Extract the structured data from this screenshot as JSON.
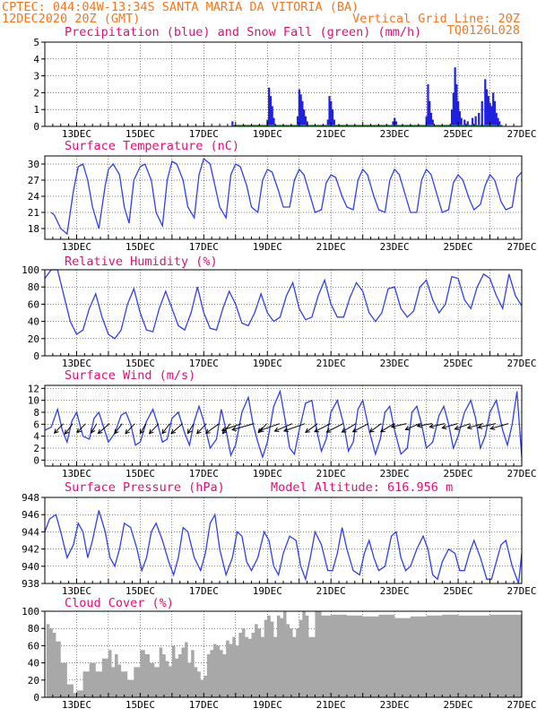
{
  "header": {
    "line1_left": "CPTEC:  044:04W-13:34S  SANTA MARIA DA VITORIA (BA)",
    "line2_left": "12DEC2020 20Z (GMT)",
    "line2_right": "Vertical Grid Line: 20Z",
    "line3_right": "TQ0126L028"
  },
  "colors": {
    "header": "#f07820",
    "title": "#e0107a",
    "precip": "#2020e0",
    "snow": "#20a020",
    "line": "#3040e8",
    "wind_arrow": "#000000",
    "cloud": "#a8a8a8",
    "grid": "#000000"
  },
  "x_tick_labels": [
    "13DEC",
    "15DEC",
    "17DEC",
    "19DEC",
    "21DEC",
    "23DEC",
    "25DEC",
    "27DEC"
  ],
  "chart_data": [
    {
      "type": "bar",
      "title": "Precipitation (blue) and Snow Fall (green) (mm/h)",
      "ylim": [
        0,
        5
      ],
      "yticks": [
        0,
        1,
        2,
        3,
        4,
        5
      ],
      "grid": true,
      "series": [
        {
          "name": "Precipitation",
          "x": [
            17.9,
            19.0,
            19.05,
            19.1,
            19.15,
            19.2,
            19.95,
            20.0,
            20.05,
            20.1,
            20.15,
            20.2,
            20.25,
            20.9,
            20.95,
            21.0,
            21.05,
            21.1,
            22.95,
            23.0,
            23.05,
            24.0,
            24.05,
            24.1,
            24.15,
            24.2,
            24.8,
            24.85,
            24.9,
            24.95,
            25.0,
            25.05,
            25.1,
            25.2,
            25.3,
            25.45,
            25.55,
            25.65,
            25.75,
            25.85,
            25.9,
            25.95,
            26.0,
            26.05,
            26.1,
            26.15,
            26.2,
            26.25,
            26.3
          ],
          "values": [
            0.3,
            0.4,
            2.3,
            1.8,
            1.2,
            0.5,
            0.6,
            2.2,
            1.9,
            1.5,
            1.0,
            0.6,
            0.3,
            0.4,
            1.8,
            1.5,
            1.0,
            0.4,
            0.3,
            0.5,
            0.3,
            0.6,
            2.5,
            1.5,
            0.8,
            0.4,
            1.0,
            2.0,
            3.5,
            2.5,
            1.5,
            0.9,
            0.5,
            0.4,
            0.3,
            0.5,
            0.6,
            0.8,
            1.5,
            2.8,
            2.2,
            1.8,
            1.4,
            1.2,
            2.0,
            1.5,
            0.8,
            0.5,
            0.3
          ]
        },
        {
          "name": "Snow Fall",
          "x": [
            17.5,
            20.5,
            22.5
          ],
          "values": [
            0,
            0,
            0
          ]
        }
      ]
    },
    {
      "type": "line",
      "title": "Surface Temperature (nC)",
      "ylim": [
        16,
        31.5
      ],
      "yticks": [
        18,
        21,
        24,
        27,
        30
      ],
      "grid": true,
      "x": [
        12.2,
        12.3,
        12.5,
        12.7,
        12.9,
        13.05,
        13.2,
        13.35,
        13.5,
        13.7,
        13.9,
        14.0,
        14.15,
        14.35,
        14.5,
        14.65,
        14.8,
        15.0,
        15.15,
        15.35,
        15.5,
        15.7,
        15.85,
        16.0,
        16.15,
        16.35,
        16.5,
        16.7,
        16.85,
        17.0,
        17.2,
        17.35,
        17.5,
        17.7,
        17.85,
        18.0,
        18.15,
        18.35,
        18.5,
        18.7,
        18.85,
        19.0,
        19.15,
        19.35,
        19.5,
        19.7,
        19.85,
        20.0,
        20.15,
        20.35,
        20.5,
        20.7,
        20.85,
        21.0,
        21.15,
        21.35,
        21.5,
        21.7,
        21.85,
        22.0,
        22.15,
        22.35,
        22.5,
        22.7,
        22.85,
        23.0,
        23.15,
        23.35,
        23.5,
        23.7,
        23.85,
        24.0,
        24.15,
        24.35,
        24.5,
        24.7,
        24.85,
        25.0,
        25.15,
        25.35,
        25.5,
        25.7,
        25.85,
        26.0,
        26.15,
        26.35,
        26.5,
        26.7,
        26.85,
        27.0
      ],
      "values": [
        21.0,
        20.5,
        18.0,
        17.0,
        25.0,
        29.5,
        30.0,
        27.0,
        22.0,
        18.0,
        26.0,
        29.0,
        30.0,
        28.0,
        22.0,
        19.0,
        27.0,
        29.5,
        30.0,
        27.0,
        21.0,
        18.5,
        27.0,
        30.5,
        30.0,
        27.0,
        22.0,
        20.0,
        28.0,
        31.0,
        30.0,
        26.0,
        22.0,
        20.0,
        28.0,
        30.0,
        29.5,
        26.0,
        22.0,
        21.0,
        27.0,
        29.0,
        28.5,
        25.0,
        22.0,
        22.0,
        27.0,
        29.0,
        28.0,
        24.0,
        21.0,
        21.5,
        26.5,
        28.0,
        27.5,
        24.0,
        22.0,
        21.5,
        27.0,
        29.0,
        28.0,
        24.0,
        21.5,
        21.0,
        27.0,
        29.0,
        28.0,
        24.0,
        21.0,
        21.0,
        27.0,
        29.0,
        28.0,
        24.0,
        21.0,
        21.5,
        26.5,
        28.0,
        27.0,
        23.5,
        21.5,
        22.5,
        26.0,
        28.0,
        27.0,
        23.0,
        21.5,
        22.0,
        27.5,
        28.5
      ]
    },
    {
      "type": "line",
      "title": "Relative Humidity (%)",
      "ylim": [
        0,
        100
      ],
      "yticks": [
        0,
        20,
        40,
        60,
        80,
        100
      ],
      "grid": true,
      "x": [
        12.0,
        12.2,
        12.4,
        12.6,
        12.8,
        13.0,
        13.2,
        13.4,
        13.6,
        13.8,
        14.0,
        14.2,
        14.4,
        14.6,
        14.8,
        15.0,
        15.2,
        15.4,
        15.6,
        15.8,
        16.0,
        16.2,
        16.4,
        16.6,
        16.8,
        17.0,
        17.2,
        17.4,
        17.6,
        17.8,
        18.0,
        18.2,
        18.4,
        18.6,
        18.8,
        19.0,
        19.2,
        19.4,
        19.6,
        19.8,
        20.0,
        20.2,
        20.4,
        20.6,
        20.8,
        21.0,
        21.2,
        21.4,
        21.6,
        21.8,
        22.0,
        22.2,
        22.4,
        22.6,
        22.8,
        23.0,
        23.2,
        23.4,
        23.6,
        23.8,
        24.0,
        24.2,
        24.4,
        24.6,
        24.8,
        25.0,
        25.2,
        25.4,
        25.6,
        25.8,
        26.0,
        26.2,
        26.4,
        26.6,
        26.8,
        27.0
      ],
      "values": [
        90,
        100,
        100,
        70,
        40,
        25,
        30,
        55,
        72,
        45,
        25,
        20,
        30,
        60,
        78,
        50,
        30,
        28,
        55,
        75,
        55,
        35,
        30,
        50,
        80,
        50,
        32,
        30,
        55,
        75,
        60,
        38,
        35,
        50,
        72,
        50,
        40,
        45,
        70,
        85,
        55,
        42,
        45,
        70,
        88,
        60,
        45,
        45,
        68,
        85,
        75,
        50,
        40,
        50,
        78,
        80,
        55,
        45,
        52,
        80,
        88,
        65,
        50,
        60,
        92,
        90,
        65,
        55,
        80,
        95,
        90,
        70,
        55,
        95,
        70,
        58
      ]
    },
    {
      "type": "line",
      "title": "Surface Wind (m/s)",
      "ylim": [
        -1,
        12.5
      ],
      "yticks": [
        0,
        2,
        4,
        6,
        8,
        10,
        12
      ],
      "grid": true,
      "x": [
        12.0,
        12.2,
        12.4,
        12.55,
        12.7,
        12.85,
        13.0,
        13.2,
        13.4,
        13.55,
        13.7,
        13.85,
        14.0,
        14.2,
        14.4,
        14.55,
        14.7,
        14.85,
        15.0,
        15.2,
        15.4,
        15.55,
        15.7,
        15.85,
        16.0,
        16.2,
        16.4,
        16.55,
        16.7,
        16.85,
        17.0,
        17.2,
        17.4,
        17.55,
        17.7,
        17.85,
        18.0,
        18.2,
        18.4,
        18.55,
        18.7,
        18.85,
        19.0,
        19.2,
        19.4,
        19.55,
        19.7,
        19.85,
        20.0,
        20.2,
        20.4,
        20.55,
        20.7,
        20.85,
        21.0,
        21.2,
        21.4,
        21.55,
        21.7,
        21.85,
        22.0,
        22.2,
        22.4,
        22.55,
        22.7,
        22.85,
        23.0,
        23.2,
        23.4,
        23.55,
        23.7,
        23.85,
        24.0,
        24.2,
        24.4,
        24.55,
        24.7,
        24.85,
        25.0,
        25.2,
        25.4,
        25.55,
        25.7,
        25.85,
        26.0,
        26.2,
        26.4,
        26.55,
        26.7,
        26.85,
        27.0
      ],
      "values": [
        5.0,
        5.5,
        8.5,
        5.0,
        3.0,
        6.5,
        8.0,
        4.0,
        3.5,
        7.0,
        8.0,
        5.5,
        3.0,
        4.5,
        7.5,
        8.0,
        6.0,
        2.5,
        3.0,
        6.5,
        8.5,
        6.0,
        3.0,
        3.5,
        7.0,
        8.0,
        4.5,
        2.5,
        6.5,
        9.0,
        6.5,
        2.0,
        3.5,
        8.5,
        5.0,
        0.8,
        2.5,
        8.0,
        10.5,
        6.0,
        3.0,
        0.5,
        3.0,
        9.0,
        11.5,
        7.0,
        2.0,
        1.0,
        5.0,
        9.5,
        10.0,
        5.0,
        1.5,
        3.5,
        8.0,
        10.0,
        6.0,
        1.5,
        3.0,
        8.5,
        10.0,
        5.0,
        1.0,
        3.5,
        8.0,
        9.0,
        5.0,
        1.0,
        2.0,
        8.0,
        9.0,
        6.0,
        2.0,
        3.0,
        7.5,
        9.0,
        6.0,
        2.0,
        4.0,
        8.0,
        10.0,
        7.0,
        2.0,
        4.0,
        8.0,
        10.0,
        5.0,
        2.5,
        6.0,
        11.5,
        0.5
      ],
      "wind_barbs": {
        "x": [
          12.3,
          12.6,
          13.0,
          13.35,
          13.75,
          14.15,
          14.55,
          14.9,
          15.3,
          15.65,
          16.05,
          16.4,
          16.8,
          17.2,
          17.55,
          17.9,
          18.3,
          18.7,
          19.1,
          19.5,
          19.9,
          20.3,
          20.7,
          21.1,
          21.5,
          21.9,
          22.3,
          22.7,
          23.1,
          23.5,
          23.9,
          24.3,
          24.7,
          25.1,
          25.5,
          25.9,
          26.3
        ],
        "speed_ms": [
          5.5,
          6.0,
          5.0,
          4.5,
          6.5,
          5.5,
          6.0,
          5.0,
          6.0,
          5.5,
          6.5,
          5.0,
          6.0,
          7.0,
          5.5,
          8.0,
          9.0,
          5.0,
          8.5,
          7.5,
          9.0,
          6.0,
          7.0,
          7.5,
          6.5,
          7.0,
          5.5,
          6.0,
          4.5,
          5.0,
          4.0,
          4.5,
          5.0,
          5.5,
          5.0,
          6.0,
          6.5
        ],
        "dir_deg": [
          60,
          65,
          60,
          70,
          55,
          65,
          60,
          70,
          60,
          65,
          55,
          70,
          60,
          50,
          65,
          30,
          25,
          60,
          30,
          35,
          30,
          50,
          40,
          40,
          45,
          40,
          50,
          45,
          20,
          35,
          15,
          20,
          25,
          30,
          25,
          20,
          25
        ]
      }
    },
    {
      "type": "line",
      "title": "Surface Pressure (hPa)",
      "annotation": "Model Altitude: 616.956 m",
      "ylim": [
        938,
        948
      ],
      "yticks": [
        938,
        940,
        942,
        944,
        946,
        948
      ],
      "grid": true,
      "x": [
        12.0,
        12.15,
        12.35,
        12.5,
        12.7,
        12.9,
        13.05,
        13.2,
        13.35,
        13.5,
        13.7,
        13.9,
        14.05,
        14.2,
        14.35,
        14.5,
        14.7,
        14.9,
        15.05,
        15.2,
        15.35,
        15.5,
        15.7,
        15.9,
        16.05,
        16.2,
        16.35,
        16.5,
        16.7,
        16.9,
        17.05,
        17.2,
        17.35,
        17.5,
        17.7,
        17.9,
        18.05,
        18.2,
        18.35,
        18.5,
        18.7,
        18.9,
        19.05,
        19.2,
        19.35,
        19.5,
        19.7,
        19.9,
        20.05,
        20.2,
        20.35,
        20.5,
        20.7,
        20.9,
        21.05,
        21.2,
        21.35,
        21.5,
        21.7,
        21.9,
        22.05,
        22.2,
        22.35,
        22.5,
        22.7,
        22.9,
        23.05,
        23.2,
        23.35,
        23.5,
        23.7,
        23.9,
        24.05,
        24.2,
        24.35,
        24.5,
        24.7,
        24.9,
        25.05,
        25.2,
        25.35,
        25.5,
        25.7,
        25.9,
        26.05,
        26.2,
        26.35,
        26.5,
        26.7,
        26.9,
        27.0
      ],
      "values": [
        944.0,
        945.5,
        946.0,
        944.0,
        941.0,
        942.5,
        945.0,
        944.0,
        941.0,
        943.0,
        946.5,
        944.0,
        941.0,
        940.0,
        942.0,
        945.0,
        944.5,
        942.0,
        939.5,
        941.0,
        944.0,
        945.0,
        943.0,
        940.5,
        939.0,
        941.0,
        944.5,
        944.0,
        941.0,
        939.5,
        941.5,
        945.0,
        946.0,
        942.0,
        939.0,
        941.0,
        944.0,
        943.5,
        940.5,
        939.5,
        941.0,
        944.0,
        943.0,
        940.0,
        939.0,
        941.5,
        943.5,
        943.0,
        940.0,
        938.5,
        941.0,
        944.0,
        942.5,
        939.5,
        939.5,
        941.5,
        944.5,
        942.0,
        939.5,
        939.0,
        941.5,
        943.0,
        941.0,
        939.5,
        940.0,
        943.5,
        944.0,
        941.0,
        939.5,
        940.0,
        942.0,
        943.5,
        942.0,
        939.0,
        938.5,
        940.5,
        942.0,
        941.5,
        939.5,
        939.5,
        941.5,
        943.0,
        941.0,
        938.5,
        938.5,
        940.5,
        942.5,
        943.0,
        940.0,
        938.0,
        941.5
      ]
    },
    {
      "type": "area",
      "title": "Cloud Cover (%)",
      "ylim": [
        0,
        100
      ],
      "yticks": [
        0,
        20,
        40,
        60,
        80,
        100
      ],
      "grid": true,
      "x": [
        12.05,
        12.15,
        12.25,
        12.35,
        12.5,
        12.7,
        12.9,
        13.0,
        13.2,
        13.4,
        13.6,
        13.8,
        14.0,
        14.1,
        14.2,
        14.3,
        14.4,
        14.6,
        14.8,
        15.0,
        15.15,
        15.3,
        15.45,
        15.6,
        15.7,
        15.8,
        15.9,
        16.0,
        16.1,
        16.2,
        16.3,
        16.4,
        16.5,
        16.6,
        16.7,
        16.8,
        16.9,
        17.0,
        17.1,
        17.2,
        17.3,
        17.4,
        17.5,
        17.6,
        17.7,
        17.8,
        17.9,
        18.0,
        18.1,
        18.2,
        18.3,
        18.4,
        18.5,
        18.6,
        18.7,
        18.8,
        18.9,
        19.0,
        19.1,
        19.2,
        19.3,
        19.4,
        19.5,
        19.6,
        19.7,
        19.8,
        19.9,
        20.0,
        20.1,
        20.2,
        20.3,
        20.5,
        20.7,
        21.0,
        21.5,
        22.0,
        22.5,
        23.0,
        23.5,
        24.0,
        24.5,
        25.0,
        25.5,
        26.0,
        26.5,
        27.0
      ],
      "values": [
        85,
        80,
        75,
        65,
        40,
        15,
        5,
        8,
        30,
        40,
        30,
        45,
        55,
        35,
        50,
        38,
        30,
        20,
        35,
        55,
        50,
        40,
        35,
        58,
        50,
        42,
        36,
        60,
        45,
        50,
        58,
        64,
        40,
        55,
        35,
        30,
        20,
        25,
        50,
        55,
        62,
        60,
        55,
        50,
        66,
        62,
        70,
        60,
        75,
        80,
        70,
        68,
        75,
        85,
        80,
        70,
        90,
        95,
        88,
        70,
        95,
        92,
        100,
        85,
        80,
        70,
        80,
        90,
        100,
        95,
        70,
        100,
        95,
        96,
        95,
        94,
        96,
        92,
        94,
        95,
        96,
        95,
        95,
        96,
        96,
        97
      ]
    }
  ]
}
